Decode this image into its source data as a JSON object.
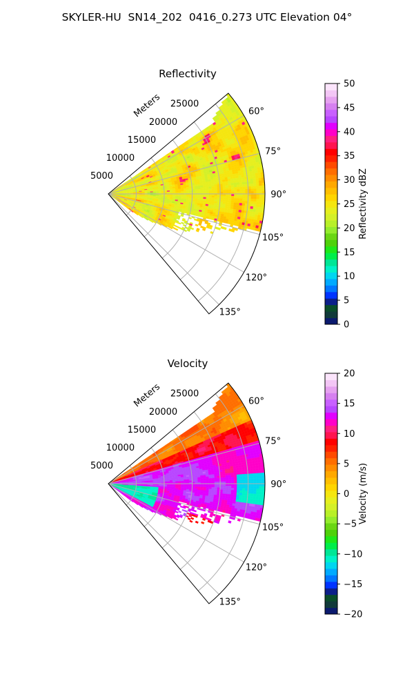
{
  "suptitle": "SKYLER-HU  SN14_202  0416_0.273 UTC Elevation 04°",
  "chart_data": [
    {
      "type": "heatmap",
      "subtype": "polar-sector (radar PPI)",
      "title": "Reflectivity",
      "range_axis_label": "Meters",
      "range_ticks": [
        "5000",
        "10000",
        "15000",
        "20000",
        "25000"
      ],
      "range_tick_values": [
        5000,
        10000,
        15000,
        20000,
        25000
      ],
      "rmax": 28000,
      "azimuth_ticks": [
        "60°",
        "75°",
        "90°",
        "105°",
        "120°",
        "135°"
      ],
      "azimuth_tick_values": [
        60,
        75,
        90,
        105,
        120,
        135
      ],
      "azimuth_range": [
        50,
        140
      ],
      "grid": true,
      "colorbar": {
        "label": "Reflectivity dBZ",
        "ticks": [
          "0",
          "5",
          "10",
          "15",
          "20",
          "25",
          "30",
          "35",
          "40",
          "45",
          "50"
        ],
        "range": [
          0,
          50
        ],
        "colors": [
          "#0b1a6e",
          "#113a3a",
          "#0a4d2a",
          "#0c1f8a",
          "#0033ff",
          "#0077ff",
          "#00aaff",
          "#00d6f0",
          "#00f2c8",
          "#00e696",
          "#00ee4a",
          "#1ee818",
          "#4ed10a",
          "#6ad614",
          "#94ec2c",
          "#b8f028",
          "#d4f028",
          "#e6ef1e",
          "#f5e60f",
          "#ffd500",
          "#ffbf00",
          "#ffa800",
          "#ff8c00",
          "#ff6e00",
          "#ff4a00",
          "#ff2000",
          "#ff0000",
          "#ff1450",
          "#ff2080",
          "#ff00c8",
          "#e100ff",
          "#b846ff",
          "#c860ff",
          "#d680f0",
          "#e6a2f0",
          "#f3c6f5",
          "#fbe4fb"
        ]
      },
      "field_description": "predominantly 20–30 dBZ (yellow/green) with scattered 35–40 dBZ cores; no data beyond ~105–130° at far range"
    },
    {
      "type": "heatmap",
      "subtype": "polar-sector (radar PPI)",
      "title": "Velocity",
      "range_axis_label": "Meters",
      "range_ticks": [
        "5000",
        "10000",
        "15000",
        "20000",
        "25000"
      ],
      "range_tick_values": [
        5000,
        10000,
        15000,
        20000,
        25000
      ],
      "rmax": 28000,
      "azimuth_ticks": [
        "60°",
        "75°",
        "90°",
        "105°",
        "120°",
        "135°"
      ],
      "azimuth_tick_values": [
        60,
        75,
        90,
        105,
        120,
        135
      ],
      "azimuth_range": [
        50,
        140
      ],
      "grid": true,
      "colorbar": {
        "label": "Velocity (m/s)",
        "ticks": [
          "−20",
          "−15",
          "−10",
          "−5",
          "0",
          "5",
          "10",
          "15",
          "20"
        ],
        "range": [
          -20,
          20
        ],
        "colors": [
          "#0b1a6e",
          "#113a3a",
          "#0a4d2a",
          "#0c1f8a",
          "#0033ff",
          "#0077ff",
          "#00aaff",
          "#00d6f0",
          "#00f2c8",
          "#00e696",
          "#00ee4a",
          "#1ee818",
          "#4ed10a",
          "#6ad614",
          "#94ec2c",
          "#b8f028",
          "#d4f028",
          "#e6ef1e",
          "#f5e60f",
          "#ffd500",
          "#ffbf00",
          "#ffa800",
          "#ff8c00",
          "#ff6e00",
          "#ff4a00",
          "#ff2000",
          "#ff0000",
          "#ff1450",
          "#ff2080",
          "#ff00c8",
          "#e100ff",
          "#b846ff",
          "#c860ff",
          "#d680f0",
          "#e6a2f0",
          "#f3c6f5",
          "#fbe4fb"
        ]
      },
      "field_description": "0 to +5 m/s near 60°, +10 to +15 m/s across 75–110°, −10 to −15 m/s near radar at 95–115° and in small patches at far range"
    }
  ]
}
